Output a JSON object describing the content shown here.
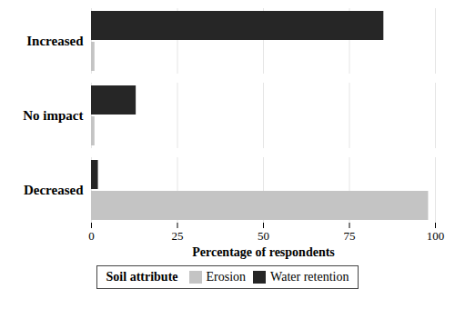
{
  "chart_data": {
    "type": "bar",
    "orientation": "horizontal",
    "categories": [
      "Increased",
      "No impact",
      "Decreased"
    ],
    "series": [
      {
        "name": "Erosion",
        "color": "#c4c4c4",
        "values": [
          1,
          1,
          98
        ]
      },
      {
        "name": "Water retention",
        "color": "#262626",
        "values": [
          85,
          13,
          2
        ]
      }
    ],
    "x_label": "Percentage of respondents",
    "legend_title": "Soil attribute",
    "legend": "bottom",
    "xlim": [
      0,
      100
    ],
    "xticks": [
      0,
      25,
      50,
      75,
      100
    ],
    "grid": true
  }
}
